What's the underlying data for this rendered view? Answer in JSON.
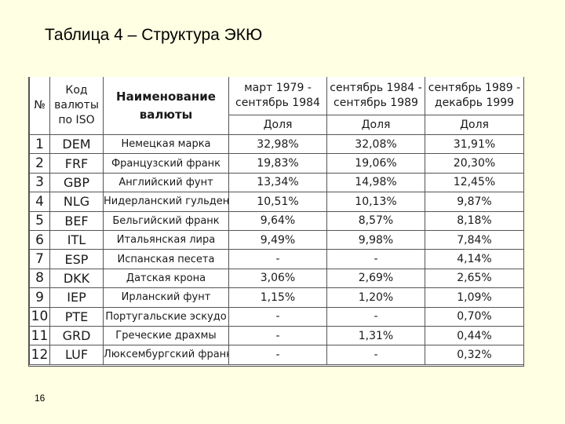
{
  "title": "Таблица 4 – Структура ЭКЮ",
  "page_number": "16",
  "table": {
    "headers": {
      "num": "№",
      "code": [
        "Код",
        "валюты",
        "по ISO"
      ],
      "name": [
        "Наименование",
        "валюты"
      ],
      "periods": [
        [
          "март 1979 -",
          "сентябрь 1984"
        ],
        [
          "сентябрь 1984 -",
          "сентябрь 1989"
        ],
        [
          "сентябрь 1989 -",
          "декабрь 1999"
        ]
      ],
      "share": "Доля"
    },
    "rows": [
      {
        "num": "1",
        "code": "DEM",
        "name": "Немецкая марка",
        "values": [
          "32,98%",
          "32,08%",
          "31,91%"
        ]
      },
      {
        "num": "2",
        "code": "FRF",
        "name": "Французский франк",
        "values": [
          "19,83%",
          "19,06%",
          "20,30%"
        ]
      },
      {
        "num": "3",
        "code": "GBP",
        "name": "Английский фунт",
        "values": [
          "13,34%",
          "14,98%",
          "12,45%"
        ]
      },
      {
        "num": "4",
        "code": "NLG",
        "name": "Нидерланский гульден",
        "values": [
          "10,51%",
          "10,13%",
          "9,87%"
        ]
      },
      {
        "num": "5",
        "code": "BEF",
        "name": "Бельгийский франк",
        "values": [
          "9,64%",
          "8,57%",
          "8,18%"
        ]
      },
      {
        "num": "6",
        "code": "ITL",
        "name": "Итальянская лира",
        "values": [
          "9,49%",
          "9,98%",
          "7,84%"
        ]
      },
      {
        "num": "7",
        "code": "ESP",
        "name": "Испанская песета",
        "values": [
          "-",
          "-",
          "4,14%"
        ]
      },
      {
        "num": "8",
        "code": "DKK",
        "name": "Датская крона",
        "values": [
          "3,06%",
          "2,69%",
          "2,65%"
        ]
      },
      {
        "num": "9",
        "code": "IEP",
        "name": "Ирланский фунт",
        "values": [
          "1,15%",
          "1,20%",
          "1,09%"
        ]
      },
      {
        "num": "10",
        "code": "PTE",
        "name": "Португальские эскудо",
        "values": [
          "-",
          "-",
          "0,70%"
        ]
      },
      {
        "num": "11",
        "code": "GRD",
        "name": "Греческие драхмы",
        "values": [
          "-",
          "1,31%",
          "0,44%"
        ]
      },
      {
        "num": "12",
        "code": "LUF",
        "name": "Люксембургский франк",
        "values": [
          "-",
          "-",
          "0,32%"
        ]
      }
    ]
  }
}
